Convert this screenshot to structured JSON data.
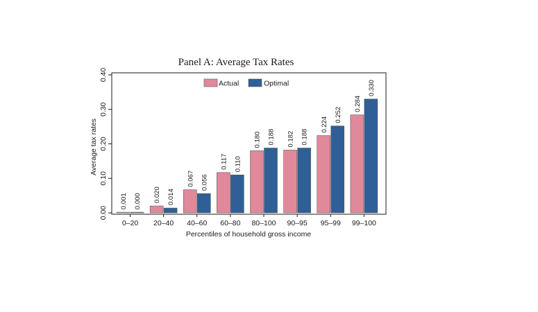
{
  "chart_data": {
    "type": "bar",
    "title": "Panel A: Average Tax Rates",
    "xlabel": "Percentiles of household gross income",
    "ylabel": "Average tax rates",
    "categories": [
      "0–20",
      "20–40",
      "40–60",
      "60–80",
      "80–100",
      "90–95",
      "95–99",
      "99–100"
    ],
    "series": [
      {
        "name": "Actual",
        "color": "#e0899a",
        "values": [
          0.001,
          0.02,
          0.067,
          0.117,
          0.18,
          0.182,
          0.224,
          0.284
        ],
        "labels": [
          "0.001",
          "0.020",
          "0.067",
          "0.117",
          "0.180",
          "0.182",
          "0.224",
          "0.284"
        ]
      },
      {
        "name": "Optimal",
        "color": "#2f5f96",
        "values": [
          0.0,
          0.014,
          0.056,
          0.11,
          0.188,
          0.188,
          0.252,
          0.33
        ],
        "labels": [
          "0.000",
          "0.014",
          "0.056",
          "0.110",
          "0.188",
          "0.188",
          "0.252",
          "0.330"
        ]
      }
    ],
    "ylim": [
      0,
      0.4
    ],
    "yticks": [
      0.0,
      0.1,
      0.2,
      0.3,
      0.4
    ],
    "ytick_labels": [
      "0.00",
      "0.10",
      "0.20",
      "0.30",
      "0.40"
    ],
    "grid": false,
    "legend": "top-center"
  }
}
